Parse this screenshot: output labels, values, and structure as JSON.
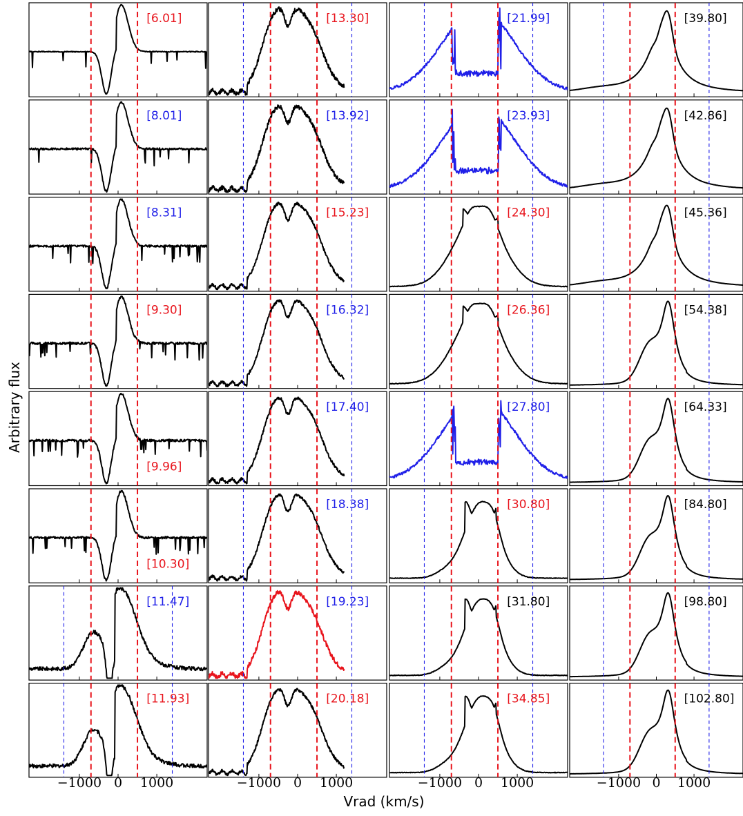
{
  "chart_data": {
    "type": "line",
    "title": "",
    "xlabel": "Vrad (km/s)",
    "ylabel": "Arbitrary flux",
    "xlim": [
      -2300,
      2300
    ],
    "xticks": [
      -1000,
      0,
      1000
    ],
    "xtick_labels": [
      "−1000",
      "0",
      "1000"
    ],
    "yticks_shown": false,
    "grid": false,
    "layout": {
      "rows": 8,
      "cols": 4,
      "order": "column-major"
    },
    "colors": {
      "black": "#000000",
      "blue": "#1f1fe8",
      "red": "#e8141c"
    },
    "red_dashed_velocities": [
      -700,
      500
    ],
    "blue_dotted_velocities": [
      -1400,
      1400
    ],
    "panels": [
      {
        "epoch": "[6.01]",
        "label_color": "red",
        "line_color": "black",
        "profile": "pcygni",
        "noise": 0.35,
        "label_pos": "top",
        "blue_markers": false
      },
      {
        "epoch": "[8.01]",
        "label_color": "blue",
        "line_color": "black",
        "profile": "pcygni",
        "noise": 0.8,
        "label_pos": "top",
        "blue_markers": false
      },
      {
        "epoch": "[8.31]",
        "label_color": "blue",
        "line_color": "black",
        "profile": "pcygni",
        "noise": 0.9,
        "label_pos": "top",
        "blue_markers": false
      },
      {
        "epoch": "[9.30]",
        "label_color": "red",
        "line_color": "black",
        "profile": "pcygni",
        "noise": 1.0,
        "label_pos": "top",
        "blue_markers": false
      },
      {
        "epoch": "[9.96]",
        "label_color": "red",
        "line_color": "black",
        "profile": "pcygni",
        "noise": 1.0,
        "label_pos": "bottom",
        "blue_markers": false
      },
      {
        "epoch": "[10.30]",
        "label_color": "red",
        "line_color": "black",
        "profile": "pcygni",
        "noise": 1.0,
        "label_pos": "bottom",
        "blue_markers": false
      },
      {
        "epoch": "[11.47]",
        "label_color": "blue",
        "line_color": "black",
        "profile": "pcygni_em",
        "noise": 0.8,
        "label_pos": "top",
        "blue_markers": true
      },
      {
        "epoch": "[11.93]",
        "label_color": "red",
        "line_color": "black",
        "profile": "pcygni_em",
        "noise": 0.8,
        "label_pos": "top",
        "blue_markers": true
      },
      {
        "epoch": "[13.30]",
        "label_color": "red",
        "line_color": "black",
        "profile": "broad",
        "noise": 0.9,
        "label_pos": "top",
        "blue_markers": true
      },
      {
        "epoch": "[13.92]",
        "label_color": "blue",
        "line_color": "black",
        "profile": "broad",
        "noise": 0.9,
        "label_pos": "top",
        "blue_markers": true
      },
      {
        "epoch": "[15.23]",
        "label_color": "red",
        "line_color": "black",
        "profile": "broad",
        "noise": 0.6,
        "label_pos": "top",
        "blue_markers": true
      },
      {
        "epoch": "[16.32]",
        "label_color": "blue",
        "line_color": "black",
        "profile": "broad",
        "noise": 0.6,
        "label_pos": "top",
        "blue_markers": true
      },
      {
        "epoch": "[17.40]",
        "label_color": "blue",
        "line_color": "black",
        "profile": "broad",
        "noise": 0.6,
        "label_pos": "top",
        "blue_markers": true
      },
      {
        "epoch": "[18.38]",
        "label_color": "blue",
        "line_color": "black",
        "profile": "broad",
        "noise": 0.6,
        "label_pos": "top",
        "blue_markers": true
      },
      {
        "epoch": "[19.23]",
        "label_color": "blue",
        "line_color": "red",
        "profile": "broad",
        "noise": 0.9,
        "label_pos": "top",
        "blue_markers": true
      },
      {
        "epoch": "[20.18]",
        "label_color": "red",
        "line_color": "black",
        "profile": "broad",
        "noise": 0.6,
        "label_pos": "top",
        "blue_markers": true
      },
      {
        "epoch": "[21.99]",
        "label_color": "blue",
        "line_color": "blue",
        "profile": "saturated",
        "noise": 1.0,
        "label_pos": "top",
        "blue_markers": true
      },
      {
        "epoch": "[23.93]",
        "label_color": "blue",
        "line_color": "blue",
        "profile": "saturated",
        "noise": 1.0,
        "label_pos": "top",
        "blue_markers": true
      },
      {
        "epoch": "[24.30]",
        "label_color": "red",
        "line_color": "black",
        "profile": "flat_top",
        "noise": 0.3,
        "label_pos": "top",
        "blue_markers": true
      },
      {
        "epoch": "[26.36]",
        "label_color": "red",
        "line_color": "black",
        "profile": "flat_top",
        "noise": 0.3,
        "label_pos": "top",
        "blue_markers": true
      },
      {
        "epoch": "[27.80]",
        "label_color": "blue",
        "line_color": "blue",
        "profile": "saturated",
        "noise": 1.0,
        "label_pos": "top",
        "blue_markers": true
      },
      {
        "epoch": "[30.80]",
        "label_color": "red",
        "line_color": "black",
        "profile": "narrow_top",
        "noise": 0.3,
        "label_pos": "top",
        "blue_markers": true
      },
      {
        "epoch": "[31.80]",
        "label_color": "black",
        "line_color": "black",
        "profile": "narrow_top",
        "noise": 0.3,
        "label_pos": "top",
        "blue_markers": true
      },
      {
        "epoch": "[34.85]",
        "label_color": "red",
        "line_color": "black",
        "profile": "narrow_top",
        "noise": 0.3,
        "label_pos": "top",
        "blue_markers": true
      },
      {
        "epoch": "[39.80]",
        "label_color": "black",
        "line_color": "black",
        "profile": "late",
        "noise": 0.1,
        "label_pos": "top",
        "blue_markers": true
      },
      {
        "epoch": "[42.86]",
        "label_color": "black",
        "line_color": "black",
        "profile": "late",
        "noise": 0.1,
        "label_pos": "top",
        "blue_markers": true
      },
      {
        "epoch": "[45.36]",
        "label_color": "black",
        "line_color": "black",
        "profile": "late",
        "noise": 0.1,
        "label_pos": "top",
        "blue_markers": true
      },
      {
        "epoch": "[54.38]",
        "label_color": "black",
        "line_color": "black",
        "profile": "late_single",
        "noise": 0.1,
        "label_pos": "top",
        "blue_markers": true
      },
      {
        "epoch": "[64.33]",
        "label_color": "black",
        "line_color": "black",
        "profile": "late_single",
        "noise": 0.1,
        "label_pos": "top",
        "blue_markers": true
      },
      {
        "epoch": "[84.80]",
        "label_color": "black",
        "line_color": "black",
        "profile": "late_single",
        "noise": 0.1,
        "label_pos": "top",
        "blue_markers": true
      },
      {
        "epoch": "[98.80]",
        "label_color": "black",
        "line_color": "black",
        "profile": "late_single",
        "noise": 0.1,
        "label_pos": "top",
        "blue_markers": true
      },
      {
        "epoch": "[102.80]",
        "label_color": "black",
        "line_color": "black",
        "profile": "late_single",
        "noise": 0.1,
        "label_pos": "top",
        "blue_markers": true
      }
    ]
  }
}
